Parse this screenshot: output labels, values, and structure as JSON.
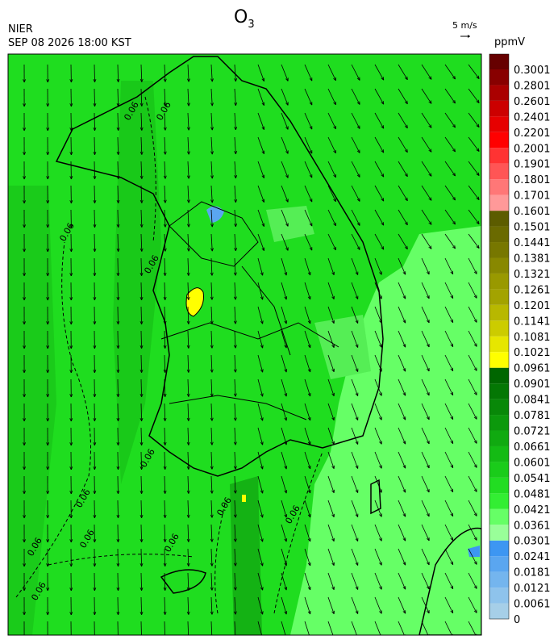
{
  "header": {
    "agency": "NIER",
    "datetime": "SEP 08 2026 18:00 KST",
    "title": {
      "symbol": "O",
      "subscript": "3"
    }
  },
  "wind_scale": {
    "label": "5 m/s"
  },
  "legend": {
    "unit": "ppmV",
    "levels": [
      0,
      0.0061,
      0.0121,
      0.0181,
      0.0241,
      0.0301,
      0.0361,
      0.0421,
      0.0481,
      0.0541,
      0.0601,
      0.0661,
      0.0721,
      0.0781,
      0.0841,
      0.0901,
      0.0961,
      0.1021,
      0.1081,
      0.1141,
      0.1201,
      0.1261,
      0.1321,
      0.1381,
      0.1441,
      0.1501,
      0.1601,
      0.1701,
      0.1801,
      0.1901,
      0.2001,
      0.2201,
      0.2401,
      0.2601,
      0.2801,
      0.3001
    ],
    "colors": [
      "#a6cfe8",
      "#8ec3ec",
      "#74b5ee",
      "#5aa6f0",
      "#3d96f2",
      "#99ff99",
      "#66ff66",
      "#33ee33",
      "#22dd22",
      "#1acc1a",
      "#14bb14",
      "#10aa10",
      "#0c990c",
      "#088808",
      "#047704",
      "#006600",
      "#ffff00",
      "#e6e600",
      "#cccc00",
      "#b8b800",
      "#a3a300",
      "#999900",
      "#888800",
      "#777700",
      "#6a6a00",
      "#5c5c00",
      "#ff9999",
      "#ff7777",
      "#ff5555",
      "#ff3333",
      "#ff0000",
      "#e60000",
      "#cc0000",
      "#aa0000",
      "#880000",
      "#660000"
    ]
  },
  "contour_labels": [
    "0.06",
    "0.06",
    "0.06",
    "0.06",
    "0.06",
    "0.06",
    "0.06",
    "0.06",
    "0.06",
    "0.06",
    "0.06",
    "0.06"
  ]
}
